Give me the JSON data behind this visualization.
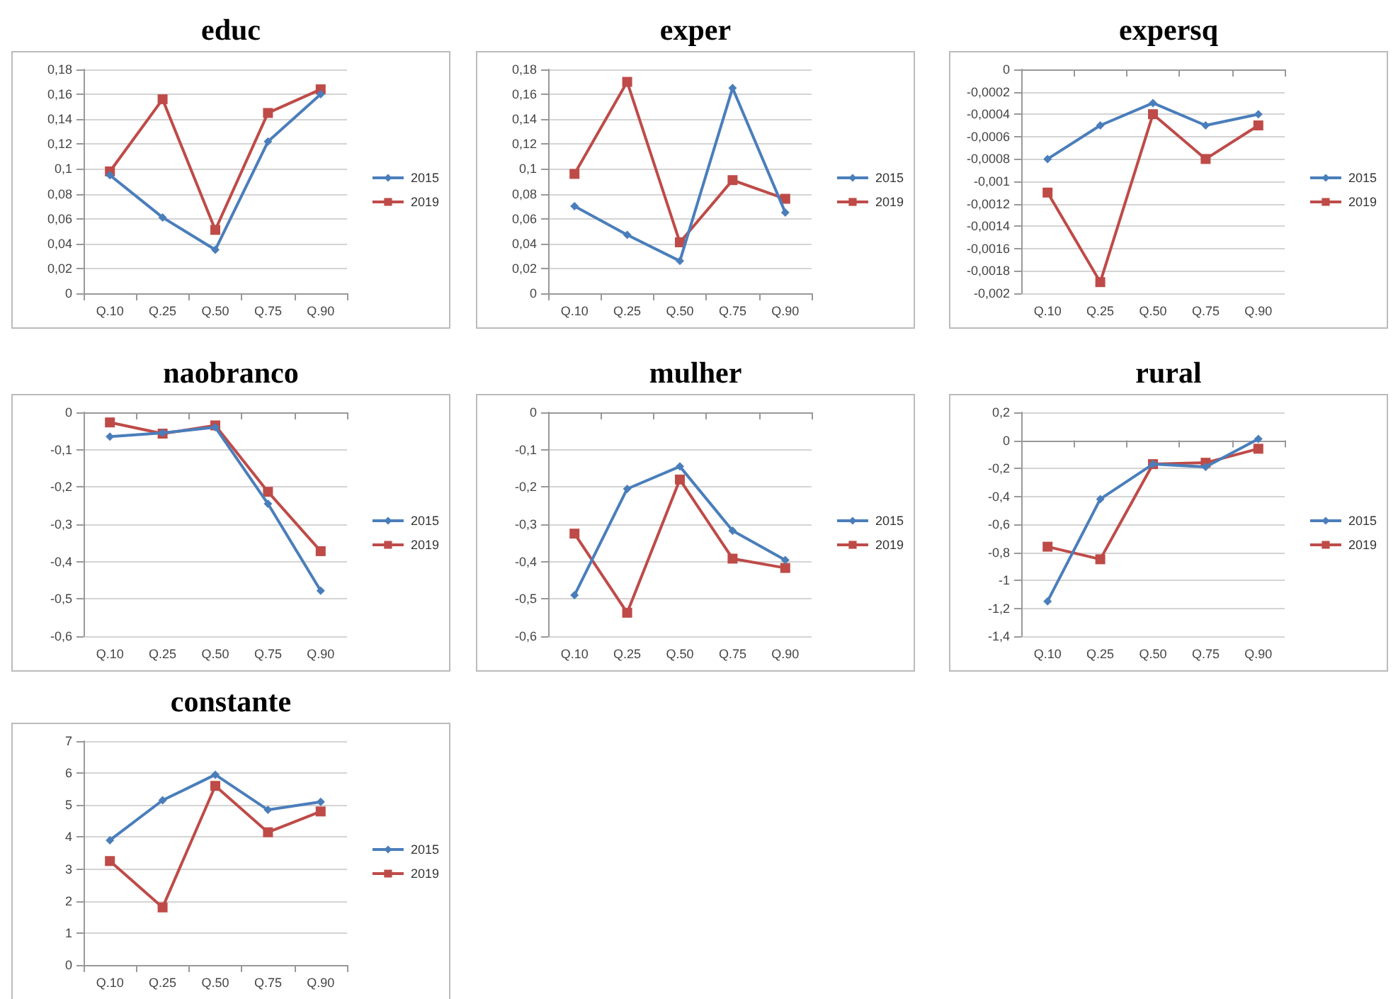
{
  "chart_data": [
    {
      "type": "line",
      "title": "educ",
      "categories": [
        "Q.10",
        "Q.25",
        "Q.50",
        "Q.75",
        "Q.90"
      ],
      "grid": "y",
      "legend": "right",
      "ylim": [
        0,
        0.18
      ],
      "yticks": [
        0,
        {
          "value": 0.02,
          "label": "0,02"
        },
        {
          "value": 0.04,
          "label": "0,04"
        },
        {
          "value": 0.06,
          "label": "0,06"
        },
        {
          "value": 0.08,
          "label": "0,08"
        },
        {
          "value": 0.1,
          "label": "0,1"
        },
        {
          "value": 0.12,
          "label": "0,12"
        },
        {
          "value": 0.14,
          "label": "0,14"
        },
        {
          "value": 0.16,
          "label": "0,16"
        },
        {
          "value": 0.18,
          "label": "0,18"
        }
      ],
      "series": [
        {
          "name": "2015",
          "color": "#4a7ebb",
          "marker": "diamond",
          "values": [
            0.095,
            0.061,
            0.035,
            0.122,
            0.16
          ]
        },
        {
          "name": "2019",
          "color": "#be4b48",
          "marker": "square",
          "values": [
            0.098,
            0.156,
            0.051,
            0.145,
            0.164
          ]
        }
      ]
    },
    {
      "type": "line",
      "title": "exper",
      "categories": [
        "Q.10",
        "Q.25",
        "Q.50",
        "Q.75",
        "Q.90"
      ],
      "grid": "y",
      "legend": "right",
      "ylim": [
        0,
        0.18
      ],
      "yticks": [
        0,
        {
          "value": 0.02,
          "label": "0,02"
        },
        {
          "value": 0.04,
          "label": "0,04"
        },
        {
          "value": 0.06,
          "label": "0,06"
        },
        {
          "value": 0.08,
          "label": "0,08"
        },
        {
          "value": 0.1,
          "label": "0,1"
        },
        {
          "value": 0.12,
          "label": "0,12"
        },
        {
          "value": 0.14,
          "label": "0,14"
        },
        {
          "value": 0.16,
          "label": "0,16"
        },
        {
          "value": 0.18,
          "label": "0,18"
        }
      ],
      "series": [
        {
          "name": "2015",
          "color": "#4a7ebb",
          "marker": "diamond",
          "values": [
            0.07,
            0.047,
            0.026,
            0.165,
            0.065
          ]
        },
        {
          "name": "2019",
          "color": "#be4b48",
          "marker": "square",
          "values": [
            0.096,
            0.17,
            0.041,
            0.091,
            0.076
          ]
        }
      ]
    },
    {
      "type": "line",
      "title": "expersq",
      "categories": [
        "Q.10",
        "Q.25",
        "Q.50",
        "Q.75",
        "Q.90"
      ],
      "grid": "y",
      "legend": "right",
      "ylim": [
        -0.002,
        0
      ],
      "yticks": [
        {
          "value": -0.002,
          "label": "-0,002"
        },
        {
          "value": -0.0018,
          "label": "-0,0018"
        },
        {
          "value": -0.0016,
          "label": "-0,0016"
        },
        {
          "value": -0.0014,
          "label": "-0,0014"
        },
        {
          "value": -0.0012,
          "label": "-0,0012"
        },
        {
          "value": -0.001,
          "label": "-0,001"
        },
        {
          "value": -0.0008,
          "label": "-0,0008"
        },
        {
          "value": -0.0006,
          "label": "-0,0006"
        },
        {
          "value": -0.0004,
          "label": "-0,0004"
        },
        {
          "value": -0.0002,
          "label": "-0,0002"
        },
        0
      ],
      "series": [
        {
          "name": "2015",
          "color": "#4a7ebb",
          "marker": "diamond",
          "values": [
            -0.0008,
            -0.0005,
            -0.0003,
            -0.0005,
            -0.0004
          ]
        },
        {
          "name": "2019",
          "color": "#be4b48",
          "marker": "square",
          "values": [
            -0.0011,
            -0.0019,
            -0.0004,
            -0.0008,
            -0.0005
          ]
        }
      ]
    },
    {
      "type": "line",
      "title": "naobranco",
      "categories": [
        "Q.10",
        "Q.25",
        "Q.50",
        "Q.75",
        "Q.90"
      ],
      "grid": "y",
      "legend": "right",
      "ylim": [
        -0.6,
        0
      ],
      "yticks": [
        {
          "value": -0.6,
          "label": "-0,6"
        },
        {
          "value": -0.5,
          "label": "-0,5"
        },
        {
          "value": -0.4,
          "label": "-0,4"
        },
        {
          "value": -0.3,
          "label": "-0,3"
        },
        {
          "value": -0.2,
          "label": "-0,2"
        },
        {
          "value": -0.1,
          "label": "-0,1"
        },
        0
      ],
      "series": [
        {
          "name": "2015",
          "color": "#4a7ebb",
          "marker": "diamond",
          "values": [
            -0.065,
            -0.055,
            -0.04,
            -0.245,
            -0.478
          ]
        },
        {
          "name": "2019",
          "color": "#be4b48",
          "marker": "square",
          "values": [
            -0.027,
            -0.057,
            -0.035,
            -0.213,
            -0.372
          ]
        }
      ]
    },
    {
      "type": "line",
      "title": "mulher",
      "categories": [
        "Q.10",
        "Q.25",
        "Q.50",
        "Q.75",
        "Q.90"
      ],
      "grid": "y",
      "legend": "right",
      "ylim": [
        -0.6,
        0
      ],
      "yticks": [
        {
          "value": -0.6,
          "label": "-0,6"
        },
        {
          "value": -0.5,
          "label": "-0,5"
        },
        {
          "value": -0.4,
          "label": "-0,4"
        },
        {
          "value": -0.3,
          "label": "-0,3"
        },
        {
          "value": -0.2,
          "label": "-0,2"
        },
        {
          "value": -0.1,
          "label": "-0,1"
        },
        0
      ],
      "series": [
        {
          "name": "2015",
          "color": "#4a7ebb",
          "marker": "diamond",
          "values": [
            -0.49,
            -0.205,
            -0.145,
            -0.317,
            -0.396
          ]
        },
        {
          "name": "2019",
          "color": "#be4b48",
          "marker": "square",
          "values": [
            -0.325,
            -0.537,
            -0.18,
            -0.392,
            -0.417
          ]
        }
      ]
    },
    {
      "type": "line",
      "title": "rural",
      "categories": [
        "Q.10",
        "Q.25",
        "Q.50",
        "Q.75",
        "Q.90"
      ],
      "grid": "y",
      "legend": "right",
      "ylim": [
        -1.4,
        0.2
      ],
      "yticks": [
        {
          "value": -1.4,
          "label": "-1,4"
        },
        {
          "value": -1.2,
          "label": "-1,2"
        },
        -1,
        {
          "value": -0.8,
          "label": "-0,8"
        },
        {
          "value": -0.6,
          "label": "-0,6"
        },
        {
          "value": -0.4,
          "label": "-0,4"
        },
        {
          "value": -0.2,
          "label": "-0,2"
        },
        0,
        {
          "value": 0.2,
          "label": "0,2"
        }
      ],
      "series": [
        {
          "name": "2015",
          "color": "#4a7ebb",
          "marker": "diamond",
          "values": [
            -1.15,
            -0.42,
            -0.17,
            -0.19,
            0.01
          ]
        },
        {
          "name": "2019",
          "color": "#be4b48",
          "marker": "square",
          "values": [
            -0.76,
            -0.85,
            -0.17,
            -0.16,
            -0.06
          ]
        }
      ]
    },
    {
      "type": "line",
      "title": "constante",
      "categories": [
        "Q.10",
        "Q.25",
        "Q.50",
        "Q.75",
        "Q.90"
      ],
      "grid": "y",
      "legend": "right",
      "ylim": [
        0,
        7
      ],
      "yticks": [
        0,
        1,
        2,
        3,
        4,
        5,
        6,
        7
      ],
      "series": [
        {
          "name": "2015",
          "color": "#4a7ebb",
          "marker": "diamond",
          "values": [
            3.9,
            5.15,
            5.95,
            4.85,
            5.1
          ]
        },
        {
          "name": "2019",
          "color": "#be4b48",
          "marker": "square",
          "values": [
            3.25,
            1.8,
            5.6,
            4.15,
            4.8
          ]
        }
      ]
    }
  ]
}
